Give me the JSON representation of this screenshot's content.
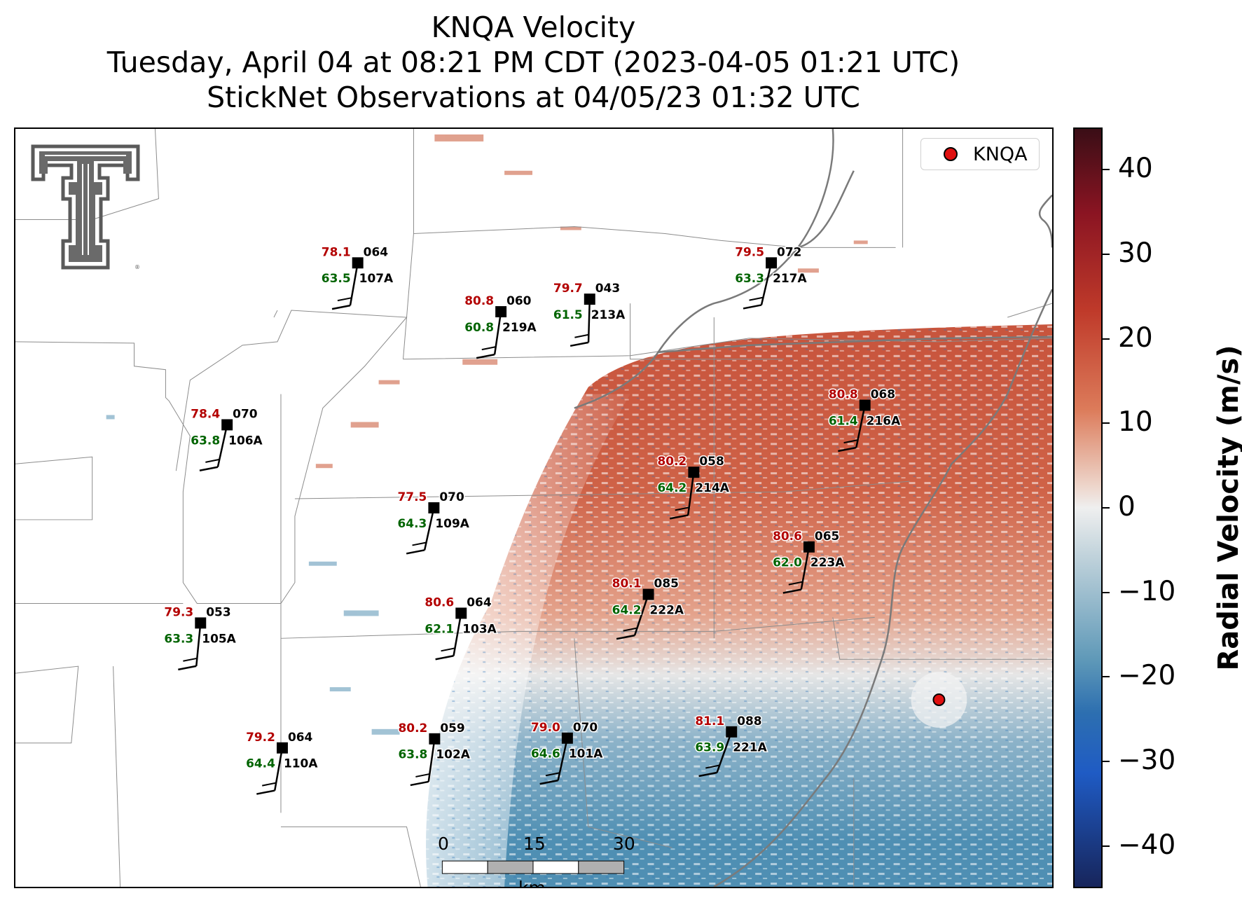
{
  "title_lines": [
    "KNQA Velocity",
    "Tuesday, April 04 at 08:21 PM CDT (2023-04-05 01:21 UTC)",
    "StickNet Observations at 04/05/23 01:32 UTC"
  ],
  "legend": {
    "marker_color": "#e01010",
    "label": "KNQA"
  },
  "colorbar": {
    "label": "Radial Velocity (m/s)",
    "ticks": [
      "40",
      "30",
      "20",
      "10",
      "0",
      "−10",
      "−20",
      "−30",
      "−40"
    ],
    "range": [
      -45,
      45
    ],
    "colors": {
      "max": "#3a0e16",
      "positive": "#bf3a2a",
      "zero": "#efefef",
      "negative": "#5f99b8",
      "min": "#17255b"
    }
  },
  "scale_bar": {
    "labels": [
      "0",
      "15",
      "30"
    ],
    "unit": "km"
  },
  "logo": {
    "name": "texas-tech-double-t-logo"
  },
  "colors": {
    "temperature": "#b30000",
    "dewpoint": "#006400",
    "station": "#000000"
  },
  "stations": [
    {
      "id": "107A",
      "temp": "78.1",
      "dew": "63.5",
      "dir": "064"
    },
    {
      "id": "219A",
      "temp": "80.8",
      "dew": "60.8",
      "dir": "060"
    },
    {
      "id": "213A",
      "temp": "79.7",
      "dew": "61.5",
      "dir": "043"
    },
    {
      "id": "217A",
      "temp": "79.5",
      "dew": "63.3",
      "dir": "072"
    },
    {
      "id": "106A",
      "temp": "78.4",
      "dew": "63.8",
      "dir": "070"
    },
    {
      "id": "216A",
      "temp": "80.8",
      "dew": "61.4",
      "dir": "068"
    },
    {
      "id": "214A",
      "temp": "80.2",
      "dew": "64.2",
      "dir": "058"
    },
    {
      "id": "109A",
      "temp": "77.5",
      "dew": "64.3",
      "dir": "070"
    },
    {
      "id": "223A",
      "temp": "80.6",
      "dew": "62.0",
      "dir": "065"
    },
    {
      "id": "222A",
      "temp": "80.1",
      "dew": "64.2",
      "dir": "085"
    },
    {
      "id": "105A",
      "temp": "79.3",
      "dew": "63.3",
      "dir": "053"
    },
    {
      "id": "103A",
      "temp": "80.6",
      "dew": "62.1",
      "dir": "064"
    },
    {
      "id": "110A",
      "temp": "79.2",
      "dew": "64.4",
      "dir": "064"
    },
    {
      "id": "102A",
      "temp": "80.2",
      "dew": "63.8",
      "dir": "059"
    },
    {
      "id": "101A",
      "temp": "79.0",
      "dew": "64.6",
      "dir": "070"
    },
    {
      "id": "221A",
      "temp": "81.1",
      "dew": "63.9",
      "dir": "088"
    }
  ]
}
